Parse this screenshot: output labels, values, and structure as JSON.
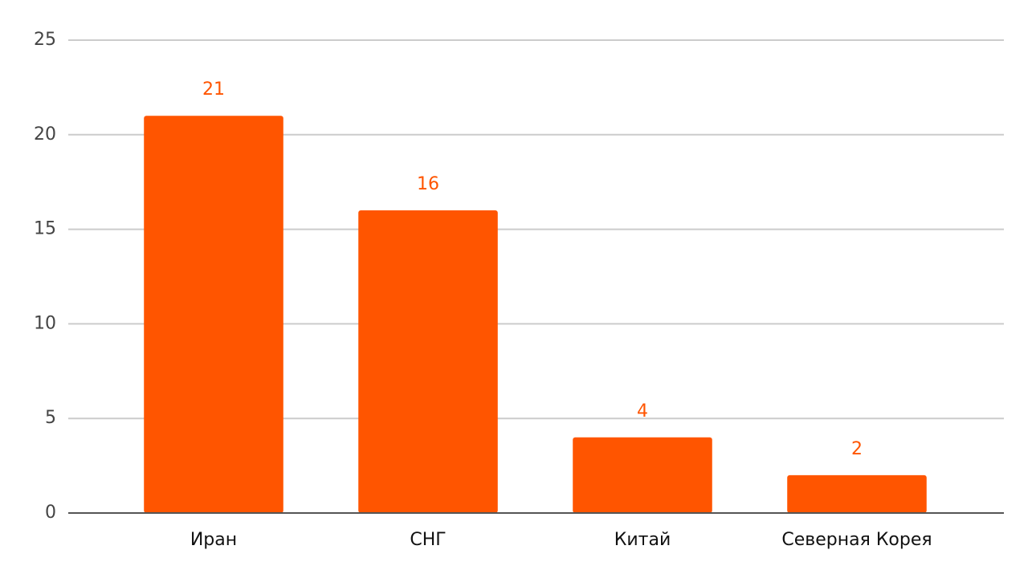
{
  "chart_data": {
    "type": "bar",
    "categories": [
      "Иран",
      "СНГ",
      "Китай",
      "Северная Корея"
    ],
    "values": [
      21,
      16,
      4,
      2
    ],
    "color": "#ff5500",
    "ylim": [
      0,
      25
    ],
    "yticks": [
      0,
      5,
      10,
      15,
      20,
      25
    ],
    "grid": true
  }
}
